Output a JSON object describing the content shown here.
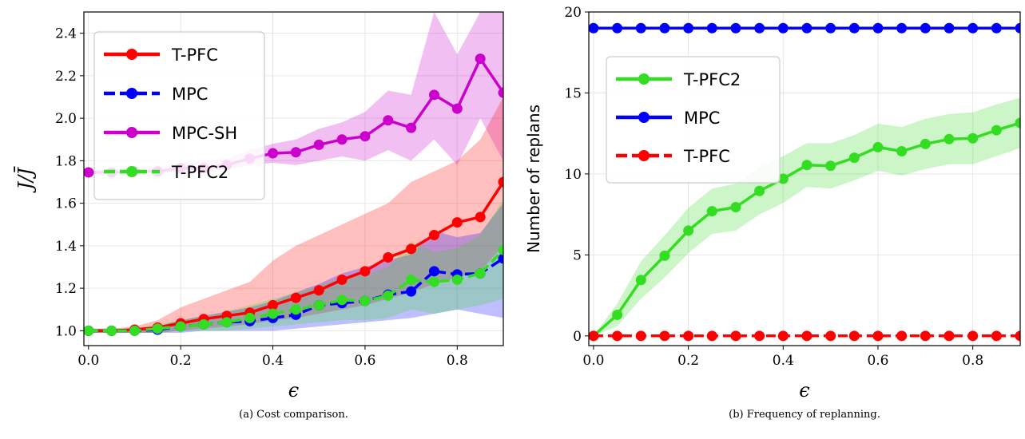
{
  "chart_data": [
    {
      "type": "line",
      "caption": "(a) Cost comparison.",
      "xlabel": "ϵ",
      "ylabel": "J/J̄",
      "xlim": [
        -0.01,
        0.9
      ],
      "ylim": [
        0.93,
        2.5
      ],
      "xticks": [
        "0.0",
        "0.2",
        "0.4",
        "0.6",
        "0.8"
      ],
      "yticks": [
        "1.0",
        "1.2",
        "1.4",
        "1.6",
        "1.8",
        "2.0",
        "2.2",
        "2.4"
      ],
      "grid": true,
      "legend": "top-left",
      "x": [
        0,
        0.05,
        0.1,
        0.15,
        0.2,
        0.25,
        0.3,
        0.35,
        0.4,
        0.45,
        0.5,
        0.55,
        0.6,
        0.65,
        0.7,
        0.75,
        0.8,
        0.85,
        0.9
      ],
      "series": [
        {
          "name": "MPC-SH",
          "color": "#cc00cc",
          "dash": false,
          "values": [
            1.745,
            1.745,
            1.75,
            1.75,
            1.765,
            1.765,
            1.78,
            1.81,
            1.835,
            1.84,
            1.875,
            1.9,
            1.915,
            1.99,
            1.955,
            2.11,
            2.045,
            2.28,
            2.12
          ],
          "band_lo": [
            1.73,
            1.73,
            1.74,
            1.74,
            1.75,
            1.74,
            1.76,
            1.78,
            1.79,
            1.78,
            1.8,
            1.82,
            1.8,
            1.85,
            1.8,
            1.9,
            1.78,
            2.0,
            1.8
          ],
          "band_hi": [
            1.76,
            1.76,
            1.77,
            1.77,
            1.79,
            1.8,
            1.81,
            1.85,
            1.88,
            1.9,
            1.95,
            1.98,
            2.03,
            2.13,
            2.11,
            2.5,
            2.3,
            2.5,
            2.5
          ]
        },
        {
          "name": "T-PFC",
          "color": "#ff0000",
          "dash": false,
          "values": [
            1.0,
            1.0,
            1.005,
            1.015,
            1.035,
            1.055,
            1.07,
            1.085,
            1.12,
            1.155,
            1.19,
            1.24,
            1.28,
            1.345,
            1.385,
            1.45,
            1.51,
            1.535,
            1.7
          ],
          "band_lo": [
            0.99,
            0.99,
            0.99,
            0.99,
            1.0,
            1.01,
            1.02,
            1.03,
            1.05,
            1.06,
            1.08,
            1.1,
            1.12,
            1.15,
            1.18,
            1.22,
            1.25,
            1.28,
            1.4
          ],
          "band_hi": [
            1.01,
            1.01,
            1.02,
            1.05,
            1.11,
            1.15,
            1.19,
            1.23,
            1.33,
            1.4,
            1.45,
            1.5,
            1.55,
            1.6,
            1.7,
            1.75,
            1.8,
            1.9,
            2.1
          ]
        },
        {
          "name": "MPC",
          "color": "#0000ff",
          "dash": true,
          "values": [
            1.0,
            1.0,
            1.0,
            1.005,
            1.02,
            1.03,
            1.04,
            1.045,
            1.06,
            1.075,
            1.12,
            1.13,
            1.14,
            1.17,
            1.185,
            1.28,
            1.265,
            1.27,
            1.34
          ],
          "band_lo": [
            0.99,
            0.99,
            0.99,
            0.99,
            0.99,
            1.0,
            1.0,
            1.0,
            1.0,
            1.01,
            1.02,
            1.03,
            1.04,
            1.05,
            1.06,
            1.08,
            1.1,
            1.08,
            1.06
          ],
          "band_hi": [
            1.01,
            1.01,
            1.01,
            1.02,
            1.05,
            1.07,
            1.09,
            1.11,
            1.14,
            1.18,
            1.22,
            1.27,
            1.3,
            1.33,
            1.36,
            1.47,
            1.44,
            1.46,
            1.6
          ]
        },
        {
          "name": "T-PFC2",
          "color": "#33dd22",
          "dash": true,
          "values": [
            1.0,
            1.0,
            1.0,
            1.01,
            1.02,
            1.03,
            1.04,
            1.06,
            1.08,
            1.1,
            1.12,
            1.145,
            1.14,
            1.165,
            1.24,
            1.23,
            1.24,
            1.27,
            1.38
          ],
          "band_lo": [
            0.99,
            0.99,
            0.99,
            0.99,
            1.0,
            1.0,
            1.0,
            1.01,
            1.02,
            1.03,
            1.04,
            1.05,
            1.05,
            1.06,
            1.1,
            1.08,
            1.1,
            1.12,
            1.15
          ],
          "band_hi": [
            1.01,
            1.01,
            1.01,
            1.03,
            1.05,
            1.07,
            1.09,
            1.12,
            1.15,
            1.18,
            1.21,
            1.25,
            1.26,
            1.3,
            1.42,
            1.37,
            1.39,
            1.45,
            1.62
          ]
        }
      ],
      "legend_order": [
        "T-PFC",
        "MPC",
        "MPC-SH",
        "T-PFC2"
      ]
    },
    {
      "type": "line",
      "caption": "(b) Frequency of replanning.",
      "xlabel": "ϵ",
      "ylabel": "Number of replans",
      "xlim": [
        -0.01,
        0.9
      ],
      "ylim": [
        -0.6,
        20
      ],
      "xticks": [
        "0.0",
        "0.2",
        "0.4",
        "0.6",
        "0.8"
      ],
      "yticks": [
        "0",
        "5",
        "10",
        "15",
        "20"
      ],
      "grid": true,
      "legend": "upper-left",
      "x": [
        0,
        0.05,
        0.1,
        0.15,
        0.2,
        0.25,
        0.3,
        0.35,
        0.4,
        0.45,
        0.5,
        0.55,
        0.6,
        0.65,
        0.7,
        0.75,
        0.8,
        0.85,
        0.9
      ],
      "series": [
        {
          "name": "T-PFC2",
          "color": "#33dd22",
          "dash": false,
          "values": [
            0,
            1.3,
            3.45,
            4.95,
            6.5,
            7.7,
            7.95,
            8.95,
            9.7,
            10.55,
            10.5,
            11.0,
            11.65,
            11.4,
            11.85,
            12.15,
            12.2,
            12.7,
            13.15
          ],
          "band_lo": [
            0,
            0.6,
            2.3,
            3.6,
            5.1,
            6.3,
            6.5,
            7.5,
            8.2,
            9.2,
            9.1,
            9.6,
            10.2,
            9.9,
            10.3,
            10.6,
            10.6,
            11.1,
            11.6
          ],
          "band_hi": [
            0,
            2.0,
            4.6,
            6.2,
            7.9,
            9.1,
            9.4,
            10.4,
            11.1,
            11.9,
            11.9,
            12.4,
            13.1,
            12.9,
            13.4,
            13.7,
            13.8,
            14.3,
            14.7
          ]
        },
        {
          "name": "MPC",
          "color": "#0000ff",
          "dash": false,
          "values": [
            19,
            19,
            19,
            19,
            19,
            19,
            19,
            19,
            19,
            19,
            19,
            19,
            19,
            19,
            19,
            19,
            19,
            19,
            19
          ]
        },
        {
          "name": "T-PFC",
          "color": "#ff0000",
          "dash": true,
          "values": [
            0,
            0,
            0,
            0,
            0,
            0,
            0,
            0,
            0,
            0,
            0,
            0,
            0,
            0,
            0,
            0,
            0,
            0,
            0
          ]
        }
      ],
      "legend_order": [
        "T-PFC2",
        "MPC",
        "T-PFC"
      ]
    }
  ]
}
